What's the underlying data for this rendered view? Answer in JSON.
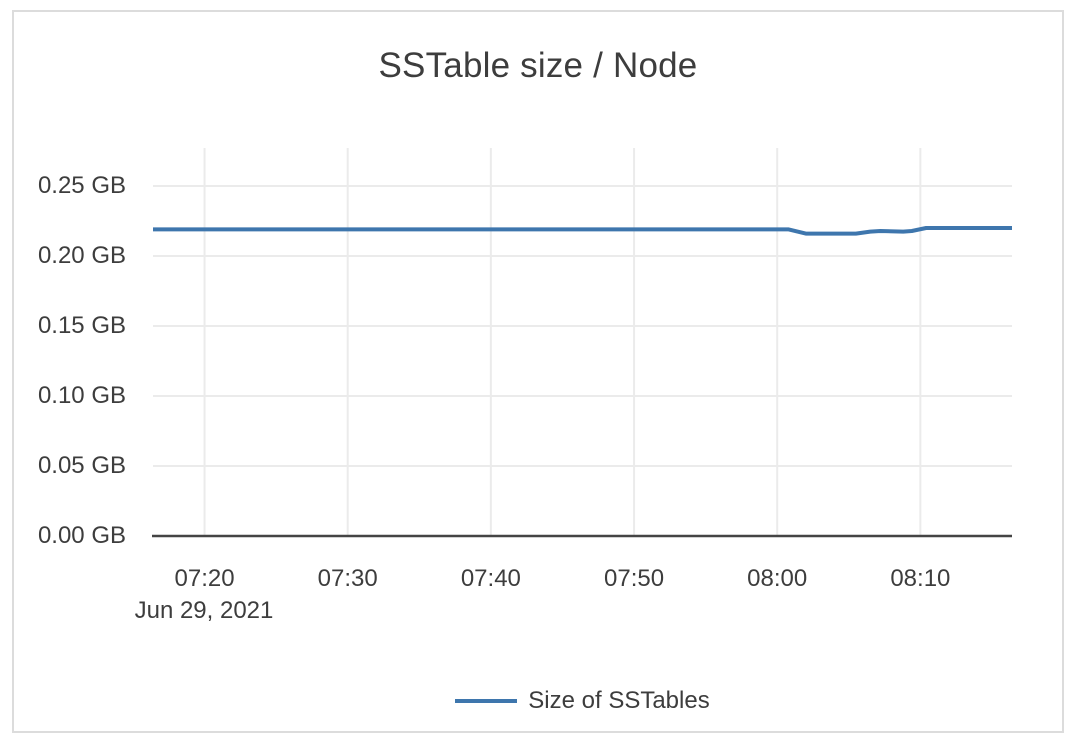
{
  "colors": {
    "background": "#ffffff",
    "card_border": "#dcdcdc",
    "text": "#3d3d3d",
    "grid": "#ebebeb",
    "axis": "#444444",
    "series_blue": "#3e76ad"
  },
  "chart_data": {
    "type": "line",
    "title": "SSTable size / Node",
    "grid": true,
    "legend_position": "bottom-center",
    "x_axis": {
      "date_label": "Jun 29, 2021",
      "unit": "time (HH:MM)",
      "range": [
        "07:16.4",
        "08:16.4"
      ],
      "ticks": [
        {
          "label": "07:20",
          "time": "07:20"
        },
        {
          "label": "07:30",
          "time": "07:30"
        },
        {
          "label": "07:40",
          "time": "07:40"
        },
        {
          "label": "07:50",
          "time": "07:50"
        },
        {
          "label": "08:00",
          "time": "08:00"
        },
        {
          "label": "08:10",
          "time": "08:10"
        }
      ]
    },
    "y_axis": {
      "unit": "GB",
      "range_gb": [
        0,
        0.2771
      ],
      "ticks": [
        {
          "label": "0.25 GB",
          "gb": 0.25
        },
        {
          "label": "0.20 GB",
          "gb": 0.2
        },
        {
          "label": "0.15 GB",
          "gb": 0.15
        },
        {
          "label": "0.10 GB",
          "gb": 0.1
        },
        {
          "label": "0.05 GB",
          "gb": 0.05
        },
        {
          "label": "0.00 GB",
          "gb": 0.0
        }
      ]
    },
    "series": [
      {
        "name": "Size of SSTables",
        "color": "#3e76ad",
        "points": [
          {
            "time": "07:16.4",
            "gb": 0.219
          },
          {
            "time": "08:00.8",
            "gb": 0.219
          },
          {
            "time": "08:02.0",
            "gb": 0.216
          },
          {
            "time": "08:05.5",
            "gb": 0.216
          },
          {
            "time": "08:06.5",
            "gb": 0.2174
          },
          {
            "time": "08:07.2",
            "gb": 0.2178
          },
          {
            "time": "08:08.8",
            "gb": 0.2174
          },
          {
            "time": "08:09.4",
            "gb": 0.2178
          },
          {
            "time": "08:10.4",
            "gb": 0.22
          },
          {
            "time": "08:16.4",
            "gb": 0.22
          }
        ]
      }
    ]
  }
}
